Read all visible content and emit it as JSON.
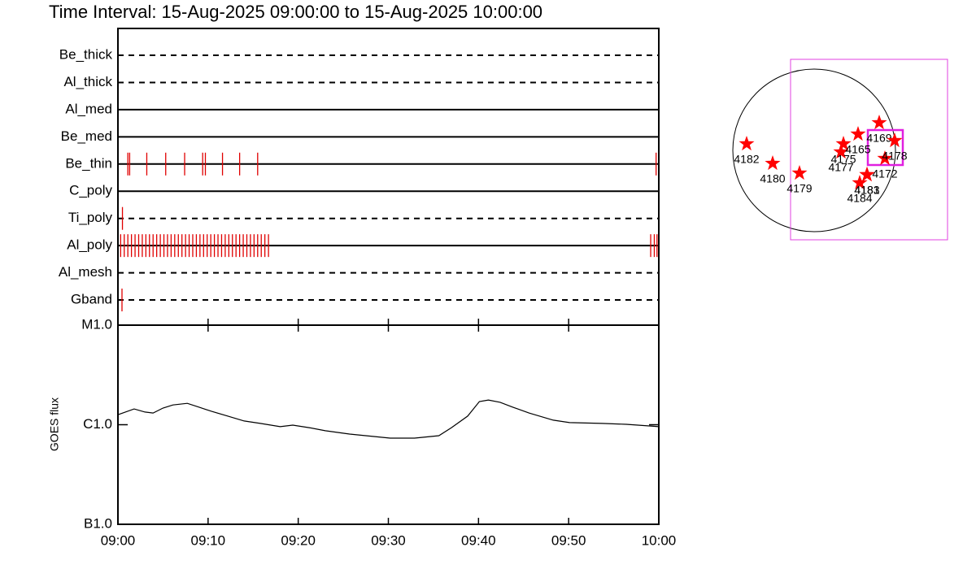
{
  "chart_data": [
    {
      "type": "timeline",
      "title": "Time Interval: 15-Aug-2025 09:00:00 to 15-Aug-2025 10:00:00",
      "color": "#e00000",
      "xlim": [
        0,
        60
      ],
      "rows": [
        {
          "name": "Be_thick",
          "style": "dashed",
          "values": []
        },
        {
          "name": "Al_thick",
          "style": "dashed",
          "values": []
        },
        {
          "name": "Al_med",
          "style": "solid",
          "values": []
        },
        {
          "name": "Be_med",
          "style": "solid",
          "values": []
        },
        {
          "name": "Be_thin",
          "style": "solid",
          "values": [
            1.1,
            1.3,
            3.2,
            5.3,
            7.4,
            9.4,
            9.7,
            11.6,
            13.5,
            15.5,
            59.7
          ]
        },
        {
          "name": "C_poly",
          "style": "solid",
          "values": []
        },
        {
          "name": "Ti_poly",
          "style": "dashed",
          "values": [
            0.5
          ]
        },
        {
          "name": "Al_poly",
          "style": "solid",
          "values": [
            0.3,
            0.7,
            1.1,
            1.5,
            1.9,
            2.3,
            2.7,
            3.1,
            3.5,
            3.9,
            4.3,
            4.7,
            5.1,
            5.5,
            5.9,
            6.3,
            6.7,
            7.1,
            7.5,
            7.9,
            8.3,
            8.7,
            9.1,
            9.5,
            9.9,
            10.3,
            10.7,
            11.1,
            11.5,
            11.9,
            12.3,
            12.7,
            13.1,
            13.5,
            13.9,
            14.3,
            14.7,
            15.1,
            15.5,
            15.9,
            16.3,
            16.7,
            59.1,
            59.5,
            59.8
          ]
        },
        {
          "name": "Al_mesh",
          "style": "dashed",
          "values": []
        },
        {
          "name": "Gband",
          "style": "dashed",
          "values": [
            0.45
          ]
        }
      ]
    },
    {
      "type": "line",
      "ylabel": "GOES flux",
      "color": "#000000",
      "log": true,
      "x": [
        0,
        1.8,
        3.0,
        3.9,
        5.0,
        6.1,
        7.7,
        9.0,
        10.4,
        12.2,
        14.0,
        15.8,
        18.0,
        19.4,
        21.2,
        23.0,
        25.7,
        28.4,
        30.2,
        32.9,
        35.6,
        37.0,
        38.8,
        40.1,
        41.1,
        42.4,
        43.8,
        45.6,
        48.3,
        50.1,
        53.7,
        56.4,
        59.1,
        60
      ],
      "values": [
        1.26e-06,
        1.44e-06,
        1.34e-06,
        1.31e-06,
        1.47e-06,
        1.58e-06,
        1.64e-06,
        1.5e-06,
        1.36e-06,
        1.22e-06,
        1.09e-06,
        1.03e-06,
        9.55e-07,
        9.9e-07,
        9.35e-07,
        8.7e-07,
        8.05e-07,
        7.62e-07,
        7.33e-07,
        7.33e-07,
        7.76e-07,
        9.35e-07,
        1.22e-06,
        1.71e-06,
        1.77e-06,
        1.68e-06,
        1.5e-06,
        1.31e-06,
        1.11e-06,
        1.05e-06,
        1.03e-06,
        1.01e-06,
        9.7e-07,
        9.55e-07
      ],
      "xlim": [
        0,
        60
      ],
      "xticks": [
        {
          "value": 0,
          "label": "09:00"
        },
        {
          "value": 10,
          "label": "09:10"
        },
        {
          "value": 20,
          "label": "09:20"
        },
        {
          "value": 30,
          "label": "09:30"
        },
        {
          "value": 40,
          "label": "09:40"
        },
        {
          "value": 50,
          "label": "09:50"
        },
        {
          "value": 60,
          "label": "10:00"
        }
      ],
      "ylim": [
        1e-07,
        1e-05
      ],
      "yticks": [
        {
          "value": 1e-07,
          "label": "B1.0"
        },
        {
          "value": 1e-06,
          "label": "C1.0"
        },
        {
          "value": 1e-05,
          "label": "M1.0"
        }
      ]
    },
    {
      "type": "scatter",
      "color": "#ff0000",
      "labels": [
        "4182",
        "4180",
        "4179",
        "4177",
        "4175",
        "4165",
        "4169",
        "4181",
        "4184",
        "4183",
        "4172",
        "4178"
      ],
      "x": [
        -797,
        -490,
        -173,
        317,
        346,
        518,
        768,
        624,
        538,
        624,
        835,
        950
      ],
      "y": [
        77,
        -154,
        -269,
        -19,
        77,
        192,
        326,
        -288,
        -384,
        -288,
        -96,
        115
      ]
    }
  ]
}
